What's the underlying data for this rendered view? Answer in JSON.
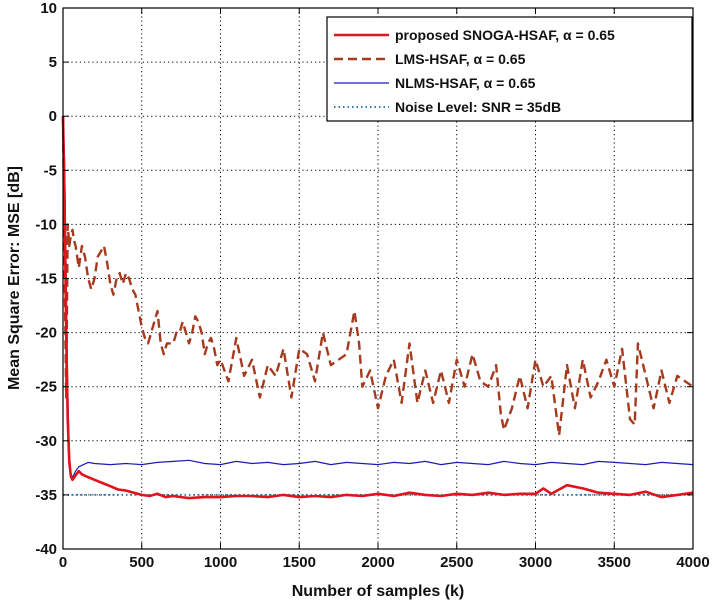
{
  "chart_data": {
    "type": "line",
    "title": "",
    "xlabel": "Number of samples (k)",
    "ylabel": "Mean Square Error: MSE [dB]",
    "xlim": [
      0,
      4000
    ],
    "ylim": [
      -40,
      10
    ],
    "xticks": [
      0,
      500,
      1000,
      1500,
      2000,
      2500,
      3000,
      3500,
      4000
    ],
    "yticks": [
      -40,
      -35,
      -30,
      -25,
      -20,
      -15,
      -10,
      -5,
      0,
      5,
      10
    ],
    "grid": true,
    "legend_position": "top-right",
    "series": [
      {
        "name": "proposed SNOGA-HSAF, α = 0.65",
        "color": "#e0141c",
        "style": "solid",
        "x": [
          0,
          10,
          20,
          30,
          40,
          50,
          60,
          80,
          100,
          120,
          150,
          200,
          250,
          300,
          350,
          400,
          450,
          500,
          550,
          600,
          650,
          700,
          750,
          800,
          900,
          1000,
          1100,
          1200,
          1300,
          1400,
          1500,
          1600,
          1700,
          1800,
          1900,
          2000,
          2100,
          2200,
          2300,
          2400,
          2500,
          2600,
          2700,
          2800,
          2900,
          3000,
          3050,
          3100,
          3150,
          3200,
          3300,
          3400,
          3500,
          3600,
          3700,
          3800,
          3900,
          4000
        ],
        "y": [
          0,
          -8,
          -20,
          -28,
          -32,
          -33.3,
          -33.6,
          -33.2,
          -32.8,
          -33.1,
          -33.3,
          -33.6,
          -33.9,
          -34.2,
          -34.5,
          -34.6,
          -34.8,
          -35,
          -35.1,
          -34.9,
          -35.2,
          -35.1,
          -35.2,
          -35.3,
          -35.2,
          -35.2,
          -35.1,
          -35.1,
          -35.2,
          -35,
          -35.2,
          -35.1,
          -35.2,
          -35,
          -35.1,
          -34.9,
          -35.1,
          -34.8,
          -35,
          -35.1,
          -34.9,
          -35,
          -34.8,
          -35,
          -34.9,
          -34.9,
          -34.4,
          -34.9,
          -34.5,
          -34.1,
          -34.4,
          -34.8,
          -34.9,
          -35,
          -34.7,
          -35.2,
          -35,
          -34.8
        ]
      },
      {
        "name": "LMS-HSAF, α = 0.65",
        "color": "#a63a1e",
        "style": "dashed",
        "x": [
          0,
          10,
          20,
          30,
          40,
          50,
          60,
          70,
          80,
          100,
          120,
          140,
          160,
          180,
          200,
          220,
          240,
          260,
          280,
          300,
          320,
          340,
          360,
          380,
          400,
          420,
          440,
          460,
          480,
          500,
          520,
          540,
          560,
          580,
          600,
          620,
          640,
          660,
          680,
          700,
          720,
          740,
          760,
          780,
          800,
          820,
          840,
          860,
          880,
          900,
          920,
          940,
          960,
          980,
          1000,
          1050,
          1100,
          1150,
          1200,
          1250,
          1300,
          1350,
          1400,
          1450,
          1500,
          1550,
          1600,
          1650,
          1700,
          1750,
          1800,
          1850,
          1880,
          1900,
          1950,
          2000,
          2050,
          2100,
          2150,
          2200,
          2250,
          2300,
          2350,
          2400,
          2450,
          2500,
          2550,
          2600,
          2650,
          2700,
          2750,
          2780,
          2800,
          2850,
          2900,
          2950,
          3000,
          3050,
          3100,
          3150,
          3200,
          3250,
          3300,
          3350,
          3400,
          3450,
          3500,
          3550,
          3600,
          3630,
          3650,
          3700,
          3750,
          3800,
          3850,
          3900,
          3950,
          4000
        ],
        "y": [
          0,
          -14,
          -26,
          -10,
          -12,
          -11,
          -10.5,
          -11.5,
          -12,
          -14,
          -12,
          -13,
          -15,
          -16,
          -15,
          -13,
          -12.5,
          -12,
          -13.5,
          -15.5,
          -16.5,
          -15,
          -14.5,
          -15.5,
          -14.5,
          -15,
          -16,
          -16.5,
          -18,
          -19.5,
          -20.5,
          -21,
          -20,
          -19,
          -18,
          -21,
          -22,
          -21,
          -21,
          -21,
          -20,
          -20,
          -19,
          -20,
          -21,
          -20,
          -18.5,
          -19,
          -20,
          -22,
          -21,
          -20.5,
          -21.5,
          -23,
          -22.5,
          -24.5,
          -20.5,
          -24,
          -22.5,
          -26,
          -23,
          -24,
          -21.5,
          -26,
          -21.5,
          -22,
          -24.5,
          -20,
          -23,
          -22.5,
          -22,
          -18,
          -21,
          -25,
          -23.5,
          -27,
          -24,
          -22.5,
          -26.5,
          -21,
          -26.5,
          -23.5,
          -26.5,
          -23.5,
          -26.5,
          -22.5,
          -25,
          -22,
          -24.5,
          -25,
          -23,
          -27.5,
          -29,
          -27,
          -24,
          -27,
          -22.5,
          -25,
          -24,
          -29.5,
          -23,
          -27,
          -22.5,
          -26,
          -24.5,
          -22.5,
          -25,
          -21.5,
          -28,
          -28.5,
          -21,
          -24,
          -27,
          -23.5,
          -26.5,
          -24,
          -24.5,
          -25
        ]
      },
      {
        "name": "NLMS-HSAF, α = 0.65",
        "color": "#1c1cb4",
        "style": "solid",
        "x": [
          0,
          10,
          20,
          30,
          40,
          50,
          60,
          80,
          100,
          130,
          160,
          200,
          300,
          400,
          500,
          600,
          700,
          800,
          900,
          1000,
          1100,
          1200,
          1300,
          1400,
          1500,
          1600,
          1700,
          1800,
          1900,
          2000,
          2100,
          2200,
          2300,
          2400,
          2500,
          2600,
          2700,
          2800,
          2900,
          3000,
          3100,
          3200,
          3300,
          3400,
          3500,
          3600,
          3700,
          3800,
          3900,
          4000
        ],
        "y": [
          0,
          -4,
          -15,
          -25,
          -31,
          -33,
          -33.4,
          -32.8,
          -32.4,
          -32.2,
          -32,
          -32.1,
          -32.2,
          -32.1,
          -32.2,
          -32,
          -31.9,
          -31.8,
          -32.1,
          -32.2,
          -31.9,
          -32.1,
          -32,
          -32.2,
          -32.1,
          -31.9,
          -32.2,
          -32,
          -32.1,
          -32.2,
          -32,
          -32.1,
          -31.9,
          -32.2,
          -32,
          -32.1,
          -32.2,
          -31.9,
          -32.1,
          -32.2,
          -32,
          -32.1,
          -32.2,
          -31.9,
          -32,
          -32.1,
          -32.2,
          -32,
          -32.1,
          -32.2
        ]
      },
      {
        "name": "Noise Level: SNR = 35dB",
        "color": "#2e7db5",
        "style": "dotted",
        "x": [
          0,
          4000
        ],
        "y": [
          -35,
          -35
        ]
      }
    ]
  }
}
